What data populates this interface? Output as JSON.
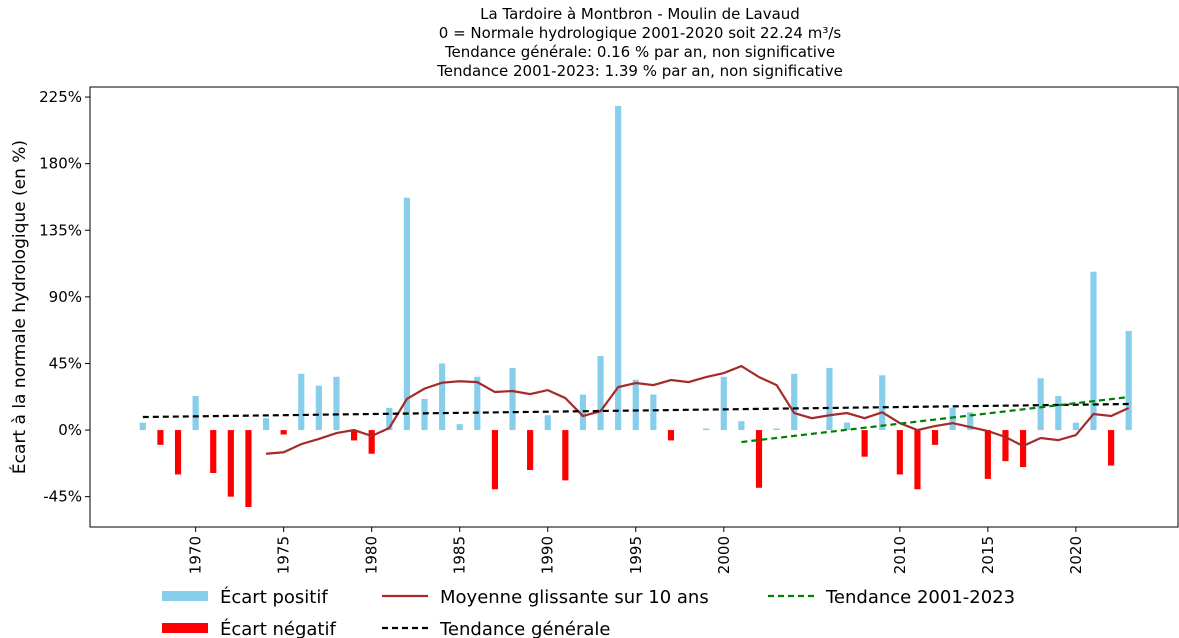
{
  "chart_data": {
    "type": "bar",
    "title": [
      "La Tardoire à Montbron - Moulin de Lavaud",
      "0 = Normale hydrologique 2001-2020 soit 22.24 m³/s",
      "Tendance générale: 0.16 % par an, non significative",
      "Tendance 2001-2023: 1.39 % par an, non significative"
    ],
    "ylabel": "Écart à la normale hydrologique (en %)",
    "xlim": [
      1964.0,
      2025.8
    ],
    "ylim": [
      -65.5,
      231.8
    ],
    "xticks": [
      1970,
      1975,
      1980,
      1985,
      1990,
      1995,
      2000,
      2010,
      2015,
      2020
    ],
    "yticks": [
      {
        "value": -45,
        "label": "-45%"
      },
      {
        "value": 0,
        "label": "0%"
      },
      {
        "value": 45,
        "label": "45%"
      },
      {
        "value": 90,
        "label": "90%"
      },
      {
        "value": 135,
        "label": "135%"
      },
      {
        "value": 180,
        "label": "180%"
      },
      {
        "value": 225,
        "label": "225%"
      }
    ],
    "series": [
      {
        "name": "Écart positif",
        "color": "#87ceeb",
        "type": "bar",
        "x": [
          1967,
          1970,
          1974,
          1976,
          1977,
          1978,
          1981,
          1982,
          1983,
          1984,
          1985,
          1986,
          1988,
          1990,
          1992,
          1993,
          1994,
          1995,
          1996,
          1999,
          2000,
          2001,
          2003,
          2004,
          2006,
          2007,
          2009,
          2013,
          2014,
          2018,
          2019,
          2020,
          2021,
          2023
        ],
        "values": [
          5,
          23,
          8,
          38,
          30,
          36,
          15,
          157,
          21,
          45,
          4,
          36,
          42,
          10,
          24,
          50,
          219,
          34,
          24,
          1,
          36,
          6,
          1,
          38,
          42,
          5,
          37,
          15,
          12,
          35,
          23,
          5,
          107,
          67
        ]
      },
      {
        "name": "Écart négatif",
        "color": "#ff0000",
        "type": "bar",
        "x": [
          1968,
          1969,
          1971,
          1972,
          1973,
          1975,
          1979,
          1980,
          1987,
          1989,
          1991,
          1997,
          2002,
          2008,
          2010,
          2011,
          2012,
          2015,
          2016,
          2017,
          2022
        ],
        "values": [
          -10,
          -30,
          -29,
          -45,
          -52,
          -3,
          -7,
          -16,
          -40,
          -27,
          -34,
          -7,
          -39,
          -18,
          -30,
          -40,
          -10,
          -33,
          -21,
          -25,
          -24
        ]
      },
      {
        "name": "Moyenne glissante sur 10 ans",
        "color": "#a52a2a",
        "type": "line",
        "dashed": false,
        "x": [
          1974,
          1975,
          1976,
          1977,
          1978,
          1979,
          1980,
          1981,
          1982,
          1983,
          1984,
          1985,
          1986,
          1987,
          1988,
          1989,
          1990,
          1991,
          1992,
          1993,
          1994,
          1995,
          1996,
          1997,
          1998,
          1999,
          2000,
          2001,
          2002,
          2003,
          2004,
          2005,
          2006,
          2007,
          2008,
          2009,
          2010,
          2011,
          2012,
          2013,
          2014,
          2015,
          2016,
          2017,
          2018,
          2019,
          2020,
          2021,
          2022,
          2023
        ],
        "values": [
          -16,
          -15,
          -9.5,
          -6,
          -2,
          0,
          -4,
          1.4,
          21,
          28,
          32,
          33,
          32.4,
          25.7,
          26.4,
          24.3,
          27,
          21.6,
          9.5,
          12.8,
          29,
          31.8,
          30.4,
          33.8,
          32.4,
          35.8,
          38.5,
          43.2,
          35.8,
          30.4,
          11.5,
          8,
          10,
          11.5,
          8,
          12,
          4.7,
          0,
          2.7,
          4.7,
          2,
          -0.7,
          -4.7,
          -10.8,
          -5.4,
          -6.8,
          -3.4,
          10.8,
          9.5,
          14.9
        ]
      },
      {
        "name": "Tendance générale",
        "color": "#000000",
        "type": "line",
        "dashed": true,
        "x": [
          1967,
          2023
        ],
        "values": [
          8.8,
          17.6
        ]
      },
      {
        "name": "Tendance 2001-2023",
        "color": "#008000",
        "type": "line",
        "dashed": true,
        "x": [
          2001,
          2023
        ],
        "values": [
          -8.1,
          22.3
        ]
      }
    ]
  }
}
